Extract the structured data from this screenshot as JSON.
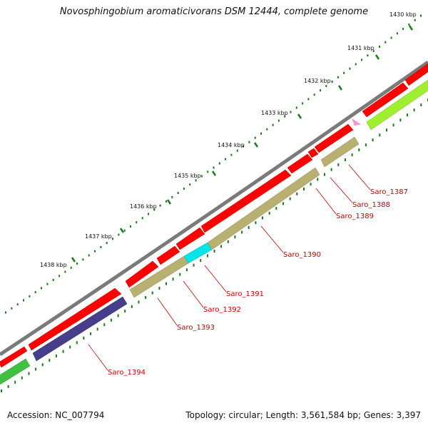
{
  "title": "Novosphingobium aromaticivorans DSM 12444, complete genome",
  "footer": {
    "accession": "Accession: NC_007794",
    "summary": "Topology: circular; Length: 3,561,584 bp; Genes: 3,397"
  },
  "colors": {
    "backbone": "#7a7a7a",
    "cds_forward": "#ff0000",
    "cds_reverse_khaki": "#b8b070",
    "cds_reverse_navy": "#483d8b",
    "cds_cyan": "#00e5e5",
    "cds_pink": "#ff99cc",
    "cds_green": "#40c040",
    "cds_lime": "#a0ee30",
    "label_red": "#cc0000",
    "tick_green": "#1a7a1a"
  },
  "scale_ticks": [
    {
      "kbp": 1430,
      "label": "1430 kbp"
    },
    {
      "kbp": 1431,
      "label": "1431 kbp"
    },
    {
      "kbp": 1432,
      "label": "1432 kbp"
    },
    {
      "kbp": 1433,
      "label": "1433 kbp"
    },
    {
      "kbp": 1434,
      "label": "1434 kbp"
    },
    {
      "kbp": 1435,
      "label": "1435 kbp"
    },
    {
      "kbp": 1436,
      "label": "1436 kbp"
    },
    {
      "kbp": 1437,
      "label": "1437 kbp"
    },
    {
      "kbp": 1438,
      "label": "1438 kbp"
    }
  ],
  "genes": [
    {
      "name": "Saro_1387",
      "strand": "-",
      "color": "khaki"
    },
    {
      "name": "Saro_1388",
      "strand": "+",
      "color": "red"
    },
    {
      "name": "Saro_1389",
      "strand": "+",
      "color": "red"
    },
    {
      "name": "Saro_1390",
      "strand": "-",
      "color": "khaki"
    },
    {
      "name": "Saro_1391",
      "strand": "-",
      "color": "cyan"
    },
    {
      "name": "Saro_1392",
      "strand": "-",
      "color": "khaki"
    },
    {
      "name": "Saro_1393",
      "strand": "-",
      "color": "khaki"
    },
    {
      "name": "Saro_1394",
      "strand": "-",
      "color": "navy"
    }
  ]
}
